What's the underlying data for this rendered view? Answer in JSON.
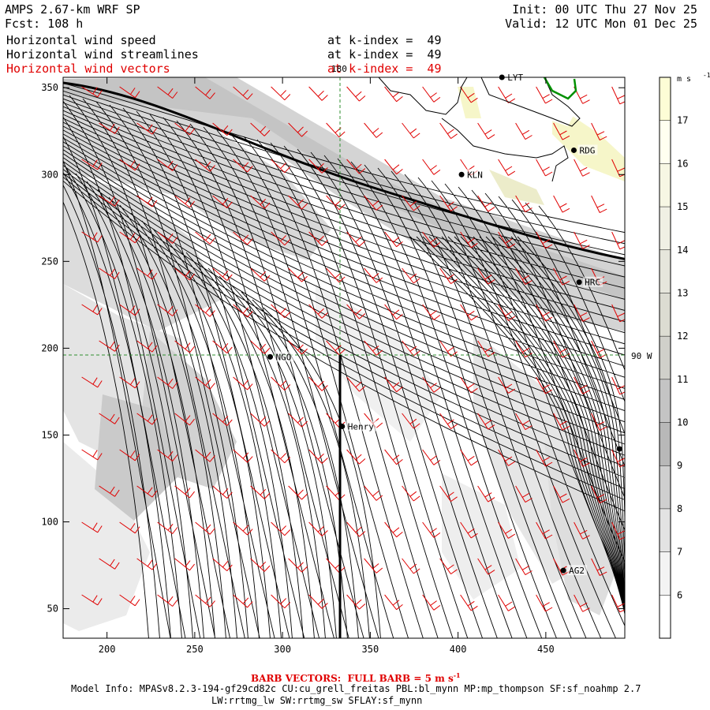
{
  "header": {
    "model": "AMPS 2.67-km WRF SP",
    "forecast": "Fcst: 108 h",
    "init": "Init: 00 UTC Thu 27 Nov 25",
    "valid": "Valid: 12 UTC Mon 01 Dec 25",
    "fields": [
      {
        "name": "Horizontal wind speed",
        "level": "at k-index =  49",
        "color": "#000000"
      },
      {
        "name": "Horizontal wind streamlines",
        "level": "at k-index =  49",
        "color": "#000000"
      },
      {
        "name": "Horizontal wind vectors",
        "level": "at k-index =  49",
        "color": "#e00000"
      }
    ]
  },
  "axes": {
    "x_ticks": [
      "200",
      "250",
      "300",
      "350",
      "400",
      "450"
    ],
    "y_ticks": [
      "50",
      "100",
      "150",
      "200",
      "250",
      "300",
      "350"
    ],
    "x_values": [
      200,
      250,
      300,
      350,
      400,
      450
    ],
    "y_values": [
      50,
      100,
      150,
      200,
      250,
      300,
      350
    ],
    "x_range": [
      175,
      495
    ],
    "y_range": [
      33,
      356
    ]
  },
  "grid_labels": {
    "meridian": "180",
    "parallel": "90 W"
  },
  "stations": [
    {
      "name": "LYT",
      "x": 425,
      "y": 356
    },
    {
      "name": "RDG",
      "x": 466,
      "y": 314
    },
    {
      "name": "KLN",
      "x": 402,
      "y": 300
    },
    {
      "name": "HRC",
      "x": 469,
      "y": 238
    },
    {
      "name": "NGO",
      "x": 293,
      "y": 195
    },
    {
      "name": "Henry",
      "x": 334,
      "y": 155
    },
    {
      "name": "AG2",
      "x": 460,
      "y": 72
    },
    {
      "name": "",
      "x": 492,
      "y": 142
    }
  ],
  "colorbar": {
    "units": "m s",
    "units_exp": "-1",
    "levels": [
      "17",
      "16",
      "15",
      "14",
      "13",
      "12",
      "11",
      "10",
      "9",
      "8",
      "7",
      "6"
    ],
    "colors": [
      "#fdfdd6",
      "#fffff0",
      "#f7f7e4",
      "#f0f0e4",
      "#e6e6dc",
      "#dcdcd2",
      "#d0d0ca",
      "#c4c4c4",
      "#b8b8b8",
      "#cfcfcf",
      "#e3e3e3",
      "#f3f3f3",
      "#ffffff"
    ]
  },
  "footer": {
    "barb_label": "BARB VECTORS:  FULL BARB = 5 m s",
    "barb_exp": "-1",
    "model_info_1": "Model Info: MPASv8.2.3-194-gf29cd82c CU:cu_grell_freitas PBL:bl_mynn MP:mp_thompson SF:sf_noahmp 2.7",
    "model_info_2": "LW:rrtmg_lw SW:rrtmg_sw SFLAY:sf_mynn"
  }
}
